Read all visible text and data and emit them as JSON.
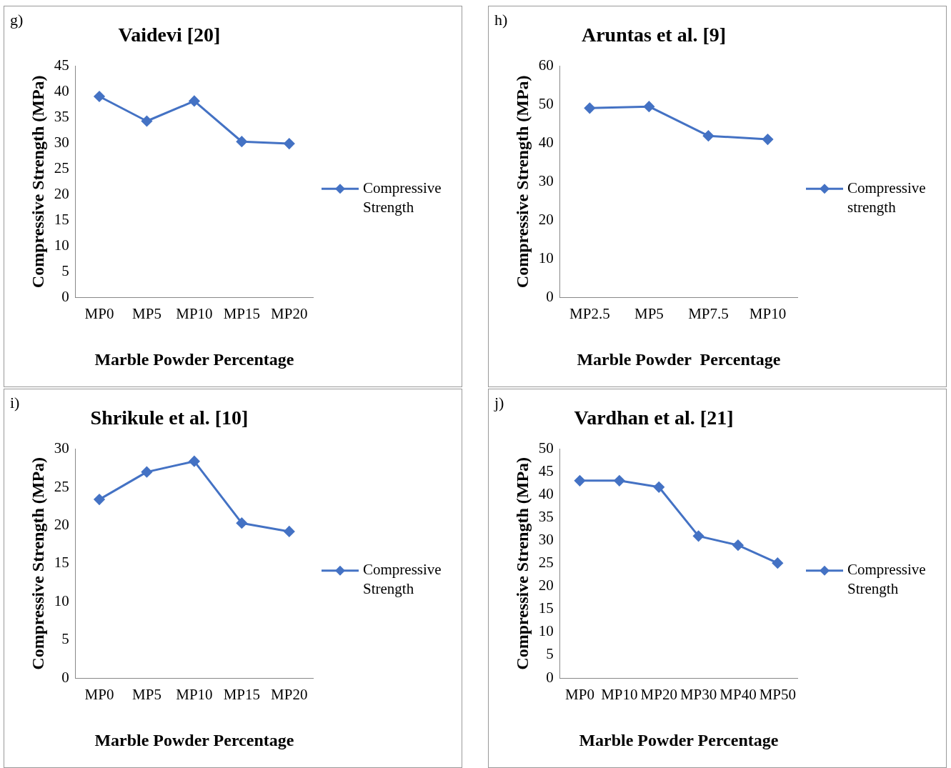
{
  "chart_data": [
    {
      "type": "line",
      "title": "Vaidevi [20]",
      "xlabel": "Marble Powder Percentage",
      "ylabel": "Compressive Strength (MPa)",
      "annotations": [
        "g)"
      ],
      "categories": [
        "MP0",
        "MP5",
        "MP10",
        "MP15",
        "MP20"
      ],
      "series": [
        {
          "name": "Compressive Strength",
          "color": "#4472c4",
          "values": [
            39.1,
            34.3,
            38.2,
            30.3,
            29.9
          ]
        }
      ],
      "ylim": [
        0,
        45
      ],
      "yticks": [
        0,
        5,
        10,
        15,
        20,
        25,
        30,
        35,
        40,
        45
      ],
      "grid": false,
      "legend": "right",
      "marker": "diamond"
    },
    {
      "type": "line",
      "title": "Aruntas et al. [9]",
      "xlabel": "Marble Powder  Percentage",
      "ylabel": "Compressive Strength (MPa)",
      "annotations": [
        "h)"
      ],
      "categories": [
        "MP2.5",
        "MP5",
        "MP7.5",
        "MP10"
      ],
      "series": [
        {
          "name": "Compressive strength",
          "color": "#4472c4",
          "values": [
            49.1,
            49.5,
            41.9,
            41.0
          ]
        }
      ],
      "ylim": [
        0,
        60
      ],
      "yticks": [
        0,
        10,
        20,
        30,
        40,
        50,
        60
      ],
      "grid": false,
      "legend": "right",
      "marker": "diamond"
    },
    {
      "type": "line",
      "title": "Shrikule et al. [10]",
      "xlabel": "Marble Powder Percentage",
      "ylabel": "Compressive Strength (MPa)",
      "annotations": [
        "i)"
      ],
      "categories": [
        "MP0",
        "MP5",
        "MP10",
        "MP15",
        "MP20"
      ],
      "series": [
        {
          "name": "Compressive Strength",
          "color": "#4472c4",
          "values": [
            23.4,
            27.0,
            28.4,
            20.3,
            19.2
          ]
        }
      ],
      "ylim": [
        0,
        30
      ],
      "yticks": [
        0,
        5,
        10,
        15,
        20,
        25,
        30
      ],
      "grid": false,
      "legend": "right",
      "marker": "diamond"
    },
    {
      "type": "line",
      "title": "Vardhan et al. [21]",
      "xlabel": "Marble Powder Percentage",
      "ylabel": "Compressive Strength (MPa)",
      "annotations": [
        "j)"
      ],
      "categories": [
        "MP0",
        "MP10",
        "MP20",
        "MP30",
        "MP40",
        "MP50"
      ],
      "series": [
        {
          "name": "Compressive Strength",
          "color": "#4472c4",
          "values": [
            43.1,
            43.1,
            41.7,
            31.0,
            29.0,
            25.1
          ]
        }
      ],
      "ylim": [
        0,
        50
      ],
      "yticks": [
        0,
        5,
        10,
        15,
        20,
        25,
        30,
        35,
        40,
        45,
        50
      ],
      "grid": false,
      "legend": "right",
      "marker": "diamond"
    }
  ]
}
